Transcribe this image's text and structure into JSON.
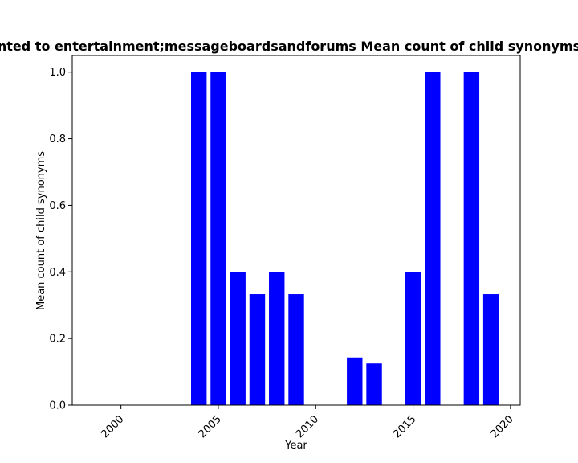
{
  "chart_data": {
    "type": "bar",
    "title": "nted to entertainment;messageboardsandforums Mean count of child synonyms",
    "xlabel": "Year",
    "ylabel": "Mean count of child synonyms",
    "bar_color": "#0000ff",
    "xlim": [
      1997.5,
      2020.5
    ],
    "ylim": [
      0,
      1.05
    ],
    "x_ticks": [
      2000,
      2005,
      2010,
      2015,
      2020
    ],
    "y_ticks": [
      0.0,
      0.2,
      0.4,
      0.6,
      0.8,
      1.0
    ],
    "x_tick_labels": [
      "2000",
      "2005",
      "2010",
      "2015",
      "2020"
    ],
    "y_tick_labels": [
      "0.0",
      "0.2",
      "0.4",
      "0.6",
      "0.8",
      "1.0"
    ],
    "x_tick_rotation": 45,
    "grid": false,
    "x": [
      2004,
      2005,
      2006,
      2007,
      2008,
      2009,
      2012,
      2013,
      2015,
      2016,
      2018,
      2019
    ],
    "values": [
      1.0,
      1.0,
      0.4,
      0.333,
      0.4,
      0.333,
      0.143,
      0.125,
      0.4,
      1.0,
      1.0,
      0.333
    ]
  }
}
